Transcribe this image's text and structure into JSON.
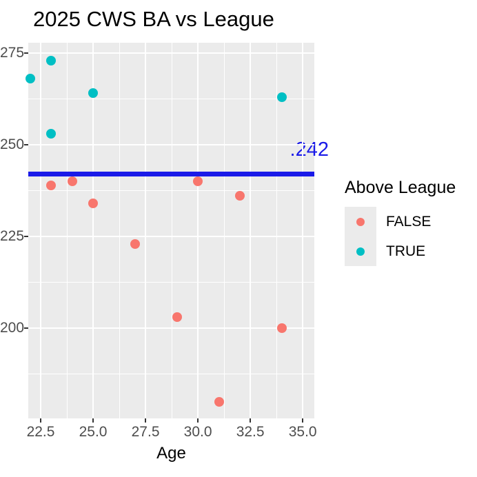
{
  "chart_data": {
    "type": "scatter",
    "title": "2025 CWS BA vs League",
    "xlabel": "Age",
    "ylabel": "",
    "x_ticks": [
      22.5,
      25.0,
      27.5,
      30.0,
      32.5,
      35.0
    ],
    "x_tick_labels": [
      "22.5",
      "25.0",
      "27.5",
      "30.0",
      "32.5",
      "35.0"
    ],
    "y_ticks": [
      0.275,
      0.25,
      0.225,
      0.2
    ],
    "y_tick_labels": [
      "275",
      "250",
      "225",
      "200"
    ],
    "xlim": [
      21.908,
      35.553
    ],
    "ylim": [
      0.1754,
      0.2778
    ],
    "grid": true,
    "legend_position": "right",
    "legend_title": "Above League",
    "series": [
      {
        "name": "FALSE",
        "color": "#F8766D",
        "points": [
          [
            23,
            0.239
          ],
          [
            24,
            0.24
          ],
          [
            25,
            0.234
          ],
          [
            27,
            0.223
          ],
          [
            29,
            0.203
          ],
          [
            30,
            0.24
          ],
          [
            31,
            0.18
          ],
          [
            32,
            0.236
          ],
          [
            34,
            0.2
          ]
        ]
      },
      {
        "name": "TRUE",
        "color": "#00BFC4",
        "points": [
          [
            22,
            0.268
          ],
          [
            23,
            0.273
          ],
          [
            23,
            0.253
          ],
          [
            25,
            0.264
          ],
          [
            34,
            0.263
          ]
        ]
      }
    ],
    "hline": {
      "value": 0.242,
      "label": ".242",
      "color": "#1A1AE8"
    }
  },
  "legend": {
    "title": "Above League",
    "items": [
      {
        "label": "FALSE",
        "color": "#F8766D"
      },
      {
        "label": "TRUE",
        "color": "#00BFC4"
      }
    ]
  },
  "colors": {
    "panel_bg": "#EBEBEB",
    "grid": "#FFFFFF",
    "tick": "#333333",
    "axis_text": "#4D4D4D",
    "title_text": "#000000"
  }
}
